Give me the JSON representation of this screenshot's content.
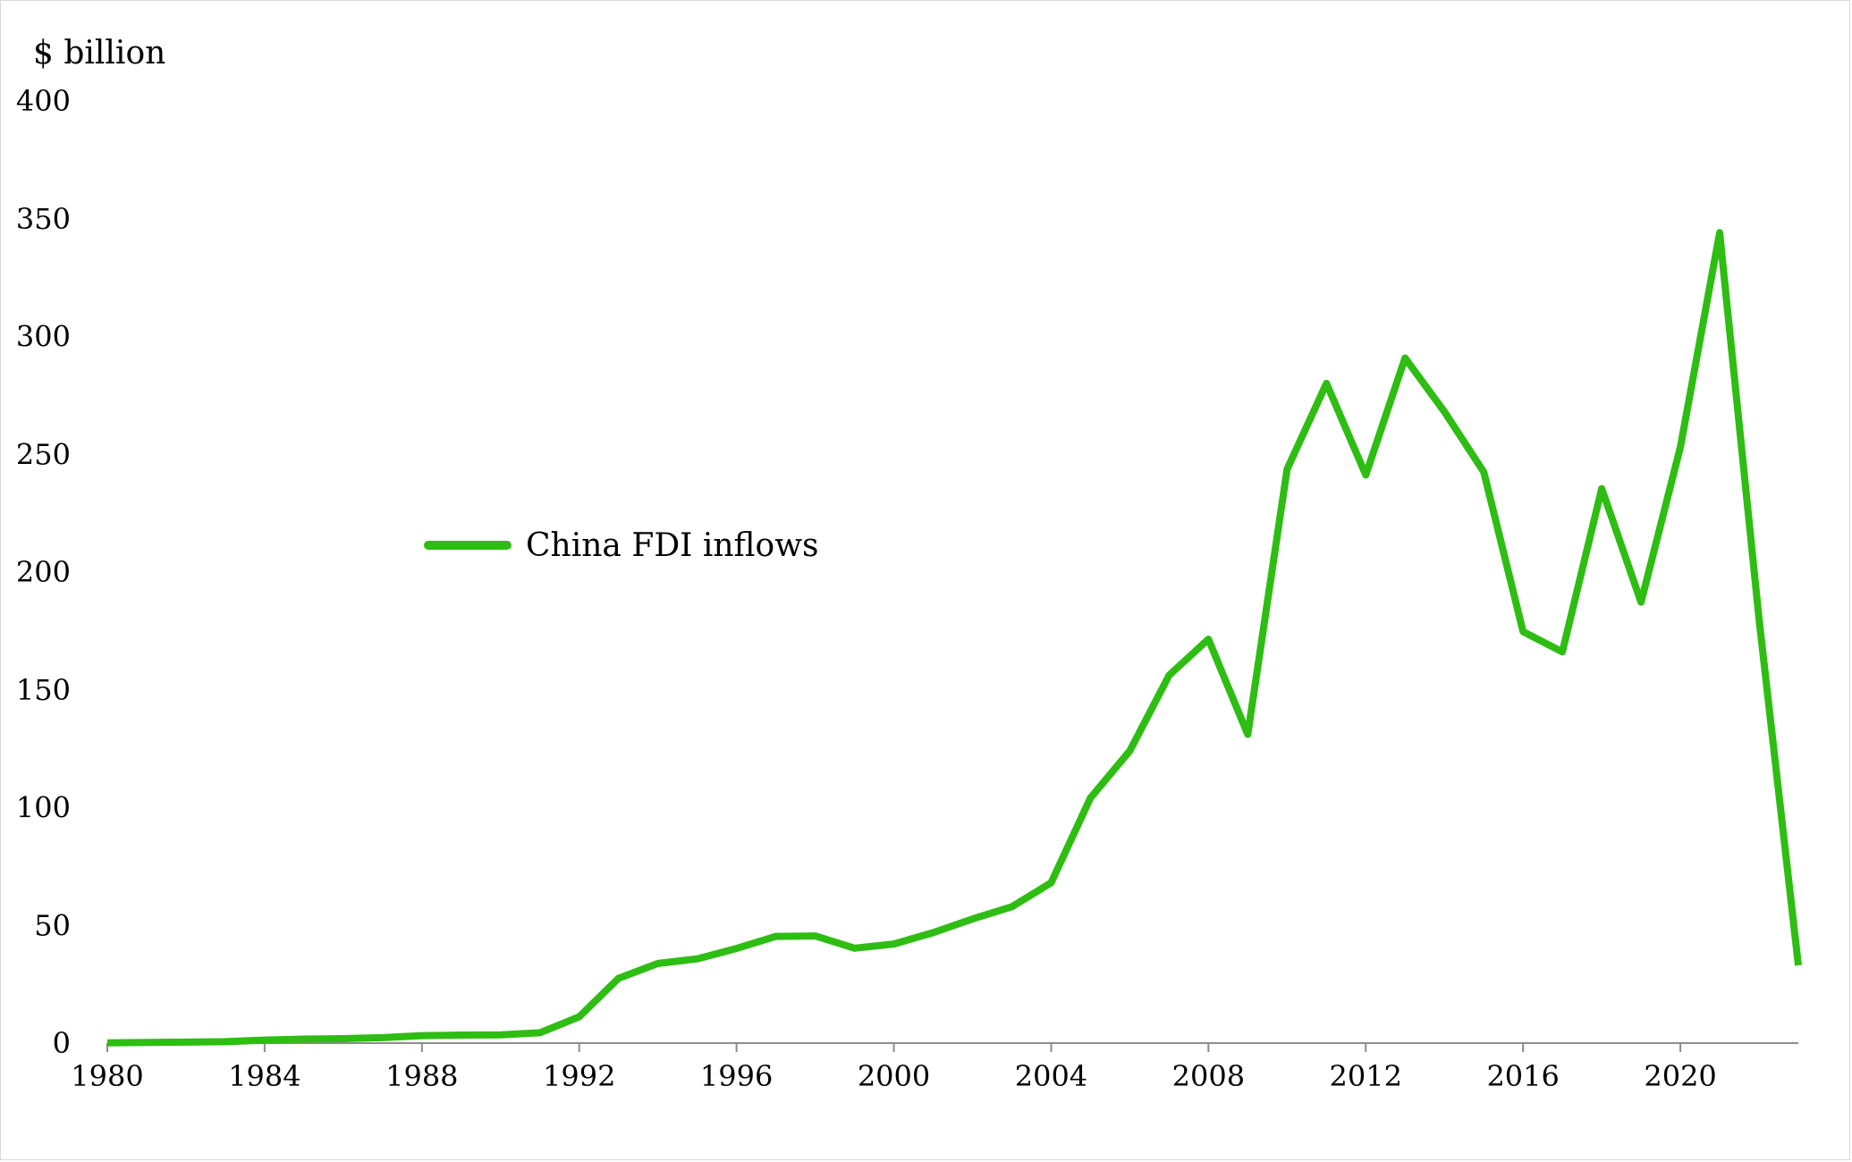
{
  "chart_data": {
    "type": "line",
    "title": "",
    "ylabel": "$ billion",
    "xlabel": "",
    "ylim": [
      0,
      400
    ],
    "xlim": [
      1980,
      2023
    ],
    "yticks": [
      0,
      50,
      100,
      150,
      200,
      250,
      300,
      350,
      400
    ],
    "xticks": [
      1980,
      1984,
      1988,
      1992,
      1996,
      2000,
      2004,
      2008,
      2012,
      2016,
      2020
    ],
    "grid": false,
    "legend_position": "center-left",
    "colors": {
      "series": "#2ebd12",
      "axis": "#8c8c8c",
      "frame": "#d9d9d9"
    },
    "series": [
      {
        "name": "China FDI inflows",
        "x": [
          1980,
          1981,
          1982,
          1983,
          1984,
          1985,
          1986,
          1987,
          1988,
          1989,
          1990,
          1991,
          1992,
          1993,
          1994,
          1995,
          1996,
          1997,
          1998,
          1999,
          2000,
          2001,
          2002,
          2003,
          2004,
          2005,
          2006,
          2007,
          2008,
          2009,
          2010,
          2011,
          2012,
          2013,
          2014,
          2015,
          2016,
          2017,
          2018,
          2019,
          2020,
          2021,
          2022,
          2023
        ],
        "values": [
          0.1,
          0.3,
          0.4,
          0.6,
          1.3,
          1.7,
          1.9,
          2.3,
          3.2,
          3.4,
          3.5,
          4.4,
          11.2,
          27.5,
          33.8,
          35.8,
          40.2,
          45.3,
          45.5,
          40.3,
          42.1,
          46.9,
          52.7,
          57.9,
          68.1,
          104.1,
          124.1,
          156.2,
          171.5,
          131.1,
          243.7,
          280.1,
          241.2,
          290.9,
          268.1,
          242.5,
          174.7,
          166.1,
          235.4,
          187.2,
          253.1,
          344.1,
          180.2,
          33.0
        ]
      }
    ]
  }
}
